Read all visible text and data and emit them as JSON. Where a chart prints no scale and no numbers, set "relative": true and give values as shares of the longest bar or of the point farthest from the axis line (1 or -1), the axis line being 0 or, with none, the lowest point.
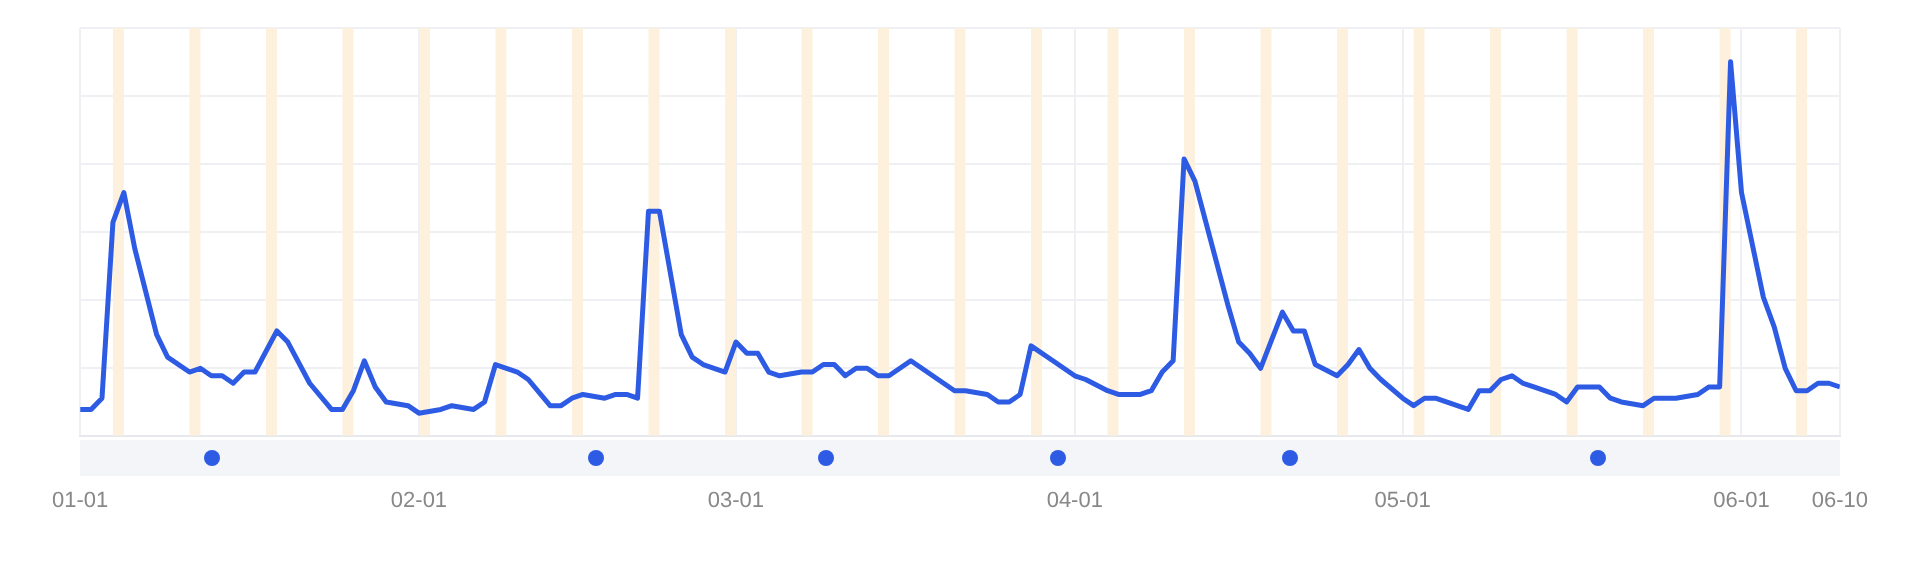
{
  "chart_data": {
    "type": "line",
    "relative": true,
    "grid": true,
    "legend": false,
    "marker": "none",
    "line_style": "solid",
    "xlim": [
      "--01-01",
      "--06-10"
    ],
    "xticks": [
      {
        "value": "--01-01",
        "label": "01-01"
      },
      {
        "value": "--02-01",
        "label": "02-01"
      },
      {
        "value": "--03-01",
        "label": "03-01"
      },
      {
        "value": "--04-01",
        "label": "04-01"
      },
      {
        "value": "--05-01",
        "label": "05-01"
      },
      {
        "value": "--06-01",
        "label": "06-01"
      },
      {
        "value": "--06-10",
        "label": "06-10"
      }
    ],
    "bands": [
      {
        "axis": "x",
        "from": "--01-04",
        "to": "--01-05",
        "color": "#fdf0dc"
      },
      {
        "axis": "x",
        "from": "--01-11",
        "to": "--01-12",
        "color": "#fdf0dc"
      },
      {
        "axis": "x",
        "from": "--01-18",
        "to": "--01-19",
        "color": "#fdf0dc"
      },
      {
        "axis": "x",
        "from": "--01-25",
        "to": "--01-26",
        "color": "#fdf0dc"
      },
      {
        "axis": "x",
        "from": "--02-01",
        "to": "--02-02",
        "color": "#fdf0dc"
      },
      {
        "axis": "x",
        "from": "--02-08",
        "to": "--02-09",
        "color": "#fdf0dc"
      },
      {
        "axis": "x",
        "from": "--02-15",
        "to": "--02-16",
        "color": "#fdf0dc"
      },
      {
        "axis": "x",
        "from": "--02-22",
        "to": "--02-23",
        "color": "#fdf0dc"
      },
      {
        "axis": "x",
        "from": "--02-29",
        "to": "--03-01",
        "color": "#fdf0dc"
      },
      {
        "axis": "x",
        "from": "--03-07",
        "to": "--03-08",
        "color": "#fdf0dc"
      },
      {
        "axis": "x",
        "from": "--03-14",
        "to": "--03-15",
        "color": "#fdf0dc"
      },
      {
        "axis": "x",
        "from": "--03-21",
        "to": "--03-22",
        "color": "#fdf0dc"
      },
      {
        "axis": "x",
        "from": "--03-28",
        "to": "--03-29",
        "color": "#fdf0dc"
      },
      {
        "axis": "x",
        "from": "--04-04",
        "to": "--04-05",
        "color": "#fdf0dc"
      },
      {
        "axis": "x",
        "from": "--04-11",
        "to": "--04-12",
        "color": "#fdf0dc"
      },
      {
        "axis": "x",
        "from": "--04-18",
        "to": "--04-19",
        "color": "#fdf0dc"
      },
      {
        "axis": "x",
        "from": "--04-25",
        "to": "--04-26",
        "color": "#fdf0dc"
      },
      {
        "axis": "x",
        "from": "--05-02",
        "to": "--05-03",
        "color": "#fdf0dc"
      },
      {
        "axis": "x",
        "from": "--05-09",
        "to": "--05-10",
        "color": "#fdf0dc"
      },
      {
        "axis": "x",
        "from": "--05-16",
        "to": "--05-17",
        "color": "#fdf0dc"
      },
      {
        "axis": "x",
        "from": "--05-23",
        "to": "--05-24",
        "color": "#fdf0dc"
      },
      {
        "axis": "x",
        "from": "--05-30",
        "to": "--05-31",
        "color": "#fdf0dc"
      },
      {
        "axis": "x",
        "from": "--06-06",
        "to": "--06-07",
        "color": "#fdf0dc"
      }
    ],
    "x": [
      "--01-01",
      "--01-02",
      "--01-03",
      "--01-04",
      "--01-05",
      "--01-06",
      "--01-08",
      "--01-09",
      "--01-11",
      "--01-12",
      "--01-13",
      "--01-14",
      "--01-15",
      "--01-16",
      "--01-17",
      "--01-19",
      "--01-20",
      "--01-22",
      "--01-24",
      "--01-25",
      "--01-26",
      "--01-27",
      "--01-28",
      "--01-29",
      "--01-31",
      "--02-01",
      "--02-03",
      "--02-04",
      "--02-06",
      "--02-07",
      "--02-08",
      "--02-10",
      "--02-11",
      "--02-13",
      "--02-14",
      "--02-15",
      "--02-16",
      "--02-18",
      "--02-19",
      "--02-20",
      "--02-21",
      "--02-22",
      "--02-23",
      "--02-25",
      "--02-26",
      "--02-27",
      "--02-29",
      "--03-01",
      "--03-02",
      "--03-03",
      "--03-04",
      "--03-05",
      "--03-07",
      "--03-08",
      "--03-09",
      "--03-10",
      "--03-11",
      "--03-12",
      "--03-13",
      "--03-14",
      "--03-15",
      "--03-17",
      "--03-18",
      "--03-21",
      "--03-22",
      "--03-24",
      "--03-25",
      "--03-26",
      "--03-27",
      "--03-28",
      "--03-30",
      "--04-01",
      "--04-02",
      "--04-04",
      "--04-05",
      "--04-07",
      "--04-08",
      "--04-09",
      "--04-10",
      "--04-11",
      "--04-12",
      "--04-15",
      "--04-16",
      "--04-17",
      "--04-18",
      "--04-20",
      "--04-21",
      "--04-22",
      "--04-23",
      "--04-25",
      "--04-26",
      "--04-27",
      "--04-28",
      "--04-29",
      "--05-01",
      "--05-02",
      "--05-03",
      "--05-04",
      "--05-06",
      "--05-07",
      "--05-08",
      "--05-09",
      "--05-10",
      "--05-11",
      "--05-12",
      "--05-13",
      "--05-15",
      "--05-16",
      "--05-17",
      "--05-19",
      "--05-20",
      "--05-21",
      "--05-23",
      "--05-24",
      "--05-25",
      "--05-26",
      "--05-28",
      "--05-29",
      "--05-30",
      "--05-31",
      "--06-01",
      "--06-03",
      "--06-04",
      "--06-05",
      "--06-06",
      "--06-07",
      "--06-08",
      "--06-09",
      "--06-10"
    ],
    "series": [
      {
        "color": "#2d5be3",
        "values": [
          0.07,
          0.07,
          0.1,
          0.57,
          0.65,
          0.5,
          0.27,
          0.21,
          0.17,
          0.18,
          0.16,
          0.16,
          0.14,
          0.17,
          0.17,
          0.28,
          0.25,
          0.14,
          0.07,
          0.07,
          0.12,
          0.2,
          0.13,
          0.09,
          0.08,
          0.06,
          0.07,
          0.08,
          0.07,
          0.09,
          0.19,
          0.17,
          0.15,
          0.08,
          0.08,
          0.1,
          0.11,
          0.1,
          0.11,
          0.11,
          0.1,
          0.6,
          0.6,
          0.27,
          0.21,
          0.19,
          0.17,
          0.25,
          0.22,
          0.22,
          0.17,
          0.16,
          0.17,
          0.17,
          0.19,
          0.19,
          0.16,
          0.18,
          0.18,
          0.16,
          0.16,
          0.2,
          0.18,
          0.12,
          0.12,
          0.11,
          0.09,
          0.09,
          0.11,
          0.24,
          0.2,
          0.16,
          0.15,
          0.12,
          0.11,
          0.11,
          0.12,
          0.17,
          0.2,
          0.74,
          0.68,
          0.35,
          0.25,
          0.22,
          0.18,
          0.33,
          0.28,
          0.28,
          0.19,
          0.16,
          0.19,
          0.23,
          0.18,
          0.15,
          0.1,
          0.08,
          0.1,
          0.1,
          0.08,
          0.07,
          0.12,
          0.12,
          0.15,
          0.16,
          0.14,
          0.13,
          0.11,
          0.09,
          0.13,
          0.13,
          0.1,
          0.09,
          0.08,
          0.1,
          0.1,
          0.1,
          0.11,
          0.13,
          0.13,
          1.0,
          0.65,
          0.37,
          0.29,
          0.18,
          0.12,
          0.12,
          0.14,
          0.14,
          0.13
        ]
      }
    ]
  }
}
